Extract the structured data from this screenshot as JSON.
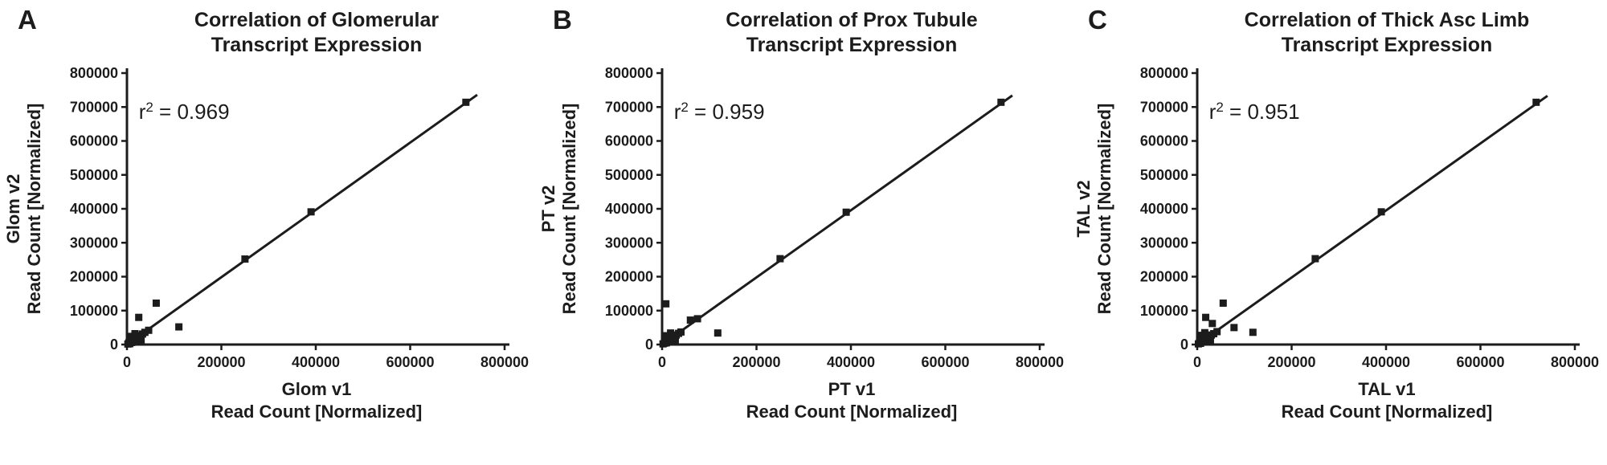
{
  "figure": {
    "background": "#ffffff",
    "ink_color": "#1c1c1c"
  },
  "chart_data": [
    {
      "type": "scatter",
      "panel_label": "A",
      "title_line1": "Correlation of Glomerular",
      "title_line2": "Transcript Expression",
      "r_squared": "0.969",
      "r2_label_pos": [
        25000,
        665000
      ],
      "xlabel_line1": "Glom v1",
      "xlabel_line2": "Read Count [Normalized]",
      "ylabel_line1": "Glom v2",
      "ylabel_line2": "Read Count [Normalized]",
      "xlim": [
        0,
        800000
      ],
      "ylim": [
        0,
        800000
      ],
      "x_ticks": [
        0,
        200000,
        400000,
        600000,
        800000
      ],
      "y_ticks": [
        0,
        100000,
        200000,
        300000,
        400000,
        500000,
        600000,
        700000,
        800000
      ],
      "marker": "filled-square",
      "color": "#1c1c1c",
      "fit_line": {
        "x1": 0,
        "y1": 0,
        "x2": 742000,
        "y2": 736000
      },
      "points": [
        [
          2000,
          1500
        ],
        [
          4000,
          5000
        ],
        [
          6000,
          2500
        ],
        [
          8000,
          9000
        ],
        [
          10000,
          6000
        ],
        [
          12000,
          13000
        ],
        [
          14000,
          10000
        ],
        [
          16000,
          17000
        ],
        [
          18000,
          14000
        ],
        [
          21000,
          20000
        ],
        [
          24000,
          23000
        ],
        [
          28000,
          26000
        ],
        [
          33000,
          31000
        ],
        [
          38000,
          36000
        ],
        [
          9000,
          24000
        ],
        [
          17000,
          32000
        ],
        [
          30000,
          12000
        ],
        [
          46000,
          42000
        ],
        [
          25000,
          80000
        ],
        [
          62000,
          122000
        ],
        [
          110000,
          52000
        ],
        [
          250000,
          252000
        ],
        [
          390000,
          391000
        ],
        [
          718000,
          714000
        ]
      ]
    },
    {
      "type": "scatter",
      "panel_label": "B",
      "title_line1": "Correlation of Prox Tubule",
      "title_line2": "Transcript Expression",
      "r_squared": "0.959",
      "r2_label_pos": [
        25000,
        665000
      ],
      "xlabel_line1": "PT v1",
      "xlabel_line2": "Read Count [Normalized]",
      "ylabel_line1": "PT v2",
      "ylabel_line2": "Read Count [Normalized]",
      "xlim": [
        0,
        800000
      ],
      "ylim": [
        0,
        800000
      ],
      "x_ticks": [
        0,
        200000,
        400000,
        600000,
        800000
      ],
      "y_ticks": [
        0,
        100000,
        200000,
        300000,
        400000,
        500000,
        600000,
        700000,
        800000
      ],
      "marker": "filled-square",
      "color": "#1c1c1c",
      "fit_line": {
        "x1": 0,
        "y1": 0,
        "x2": 742000,
        "y2": 734000
      },
      "points": [
        [
          2000,
          2000
        ],
        [
          5000,
          4000
        ],
        [
          7000,
          8000
        ],
        [
          9000,
          5000
        ],
        [
          11000,
          12000
        ],
        [
          13000,
          9000
        ],
        [
          15000,
          16000
        ],
        [
          18000,
          13000
        ],
        [
          20000,
          19000
        ],
        [
          23000,
          22000
        ],
        [
          26000,
          24000
        ],
        [
          30000,
          28000
        ],
        [
          35000,
          33000
        ],
        [
          40000,
          37000
        ],
        [
          10000,
          26000
        ],
        [
          18000,
          34000
        ],
        [
          28000,
          14000
        ],
        [
          8000,
          120000
        ],
        [
          60000,
          72000
        ],
        [
          75000,
          76000
        ],
        [
          118000,
          34000
        ],
        [
          250000,
          253000
        ],
        [
          390000,
          390000
        ],
        [
          718000,
          714000
        ]
      ]
    },
    {
      "type": "scatter",
      "panel_label": "C",
      "title_line1": "Correlation of Thick Asc Limb",
      "title_line2": "Transcript Expression",
      "r_squared": "0.951",
      "r2_label_pos": [
        25000,
        665000
      ],
      "xlabel_line1": "TAL v1",
      "xlabel_line2": "Read Count [Normalized]",
      "ylabel_line1": "TAL v2",
      "ylabel_line2": "Read Count [Normalized]",
      "xlim": [
        0,
        800000
      ],
      "ylim": [
        0,
        800000
      ],
      "x_ticks": [
        0,
        200000,
        400000,
        600000,
        800000
      ],
      "y_ticks": [
        0,
        100000,
        200000,
        300000,
        400000,
        500000,
        600000,
        700000,
        800000
      ],
      "marker": "filled-square",
      "color": "#1c1c1c",
      "fit_line": {
        "x1": 0,
        "y1": 0,
        "x2": 742000,
        "y2": 733000
      },
      "points": [
        [
          2500,
          2000
        ],
        [
          5000,
          6000
        ],
        [
          7000,
          3500
        ],
        [
          9000,
          10000
        ],
        [
          11000,
          7000
        ],
        [
          13000,
          14000
        ],
        [
          15000,
          11000
        ],
        [
          17000,
          18000
        ],
        [
          20000,
          15000
        ],
        [
          23000,
          21000
        ],
        [
          26000,
          25000
        ],
        [
          30000,
          28000
        ],
        [
          35000,
          32000
        ],
        [
          42000,
          38000
        ],
        [
          10000,
          27000
        ],
        [
          16000,
          35000
        ],
        [
          28000,
          13000
        ],
        [
          18000,
          80000
        ],
        [
          55000,
          122000
        ],
        [
          32000,
          62000
        ],
        [
          78000,
          50000
        ],
        [
          118000,
          36000
        ],
        [
          250000,
          253000
        ],
        [
          390000,
          391000
        ],
        [
          718000,
          714000
        ]
      ]
    }
  ]
}
